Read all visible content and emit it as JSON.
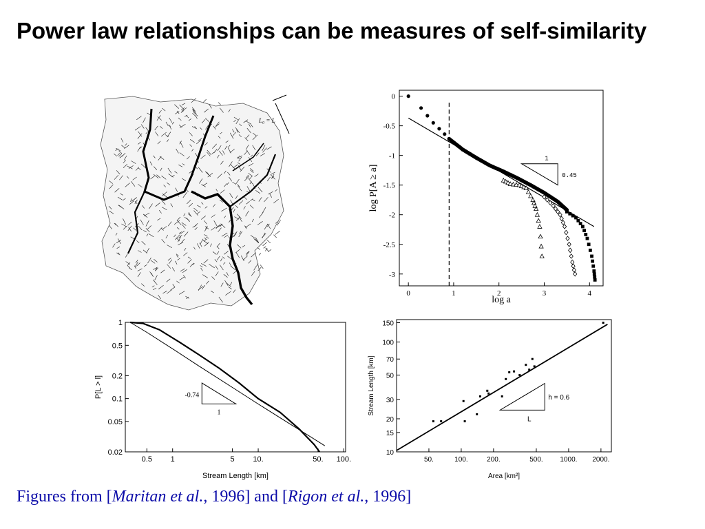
{
  "slide": {
    "title": "Power law relationships can be measures of self-similarity",
    "caption": {
      "prefix": "Figures from [",
      "ref1_author": "Maritan et al.",
      "ref1_year": ", 1996] and [",
      "ref2_author": "Rigon et al.",
      "ref2_year": ", 1996]"
    }
  },
  "colors": {
    "ink": "#000000",
    "caption": "#0b0ba8",
    "background": "#ffffff"
  },
  "river_network_label": "L₀ = L",
  "chart_data": [
    {
      "id": "area_exceedance",
      "type": "scatter",
      "xlabel": "log a",
      "ylabel": "log P[A ≥ a]",
      "xlim": [
        -0.2,
        4.3
      ],
      "ylim": [
        -3.2,
        0.1
      ],
      "x_ticks": [
        0,
        1,
        2,
        3,
        4
      ],
      "x_tick_labels": [
        "0",
        "1",
        "2",
        "3",
        "4"
      ],
      "y_ticks": [
        0,
        -0.5,
        -1,
        -1.5,
        -2,
        -2.5,
        -3
      ],
      "y_tick_labels": [
        "0",
        "-0.5",
        "-1",
        "-1.5",
        "-2",
        "-2.5",
        "-3"
      ],
      "cutoff_line_x": 0.9,
      "fit_line": {
        "x": [
          0.0,
          4.1
        ],
        "y": [
          -0.37,
          -2.2
        ]
      },
      "slope_triangle": {
        "run_label": "1",
        "rise_label": "0.45"
      },
      "series": [
        {
          "marker": "circle",
          "x": [
            0.0,
            0.28,
            0.42,
            0.55,
            0.68,
            0.8,
            0.9
          ],
          "y": [
            0.0,
            -0.2,
            -0.33,
            -0.45,
            -0.55,
            -0.64,
            -0.72
          ]
        },
        {
          "marker": "dense",
          "x": [
            0.9,
            1.2,
            1.5,
            1.8,
            2.1,
            2.4,
            2.7,
            3.0,
            3.3,
            3.5
          ],
          "y": [
            -0.72,
            -0.9,
            -1.04,
            -1.17,
            -1.27,
            -1.38,
            -1.5,
            -1.63,
            -1.78,
            -1.92
          ]
        },
        {
          "marker": "triangle",
          "x": [
            2.1,
            2.25,
            2.45,
            2.6,
            2.75,
            2.82,
            2.9,
            2.95
          ],
          "y": [
            -1.42,
            -1.48,
            -1.5,
            -1.55,
            -1.75,
            -1.9,
            -2.2,
            -2.7
          ]
        },
        {
          "marker": "diamond",
          "x": [
            3.0,
            3.2,
            3.35,
            3.45,
            3.55,
            3.62,
            3.68
          ],
          "y": [
            -1.7,
            -1.85,
            -2.0,
            -2.2,
            -2.5,
            -2.8,
            -3.0
          ]
        },
        {
          "marker": "square",
          "x": [
            3.5,
            3.7,
            3.85,
            3.95,
            4.05,
            4.1,
            4.12
          ],
          "y": [
            -1.95,
            -2.05,
            -2.2,
            -2.4,
            -2.7,
            -2.95,
            -3.1
          ]
        }
      ]
    },
    {
      "id": "stream_length_exceedance",
      "type": "line",
      "xlabel": "Stream Length [km]",
      "ylabel": "P[L > l]",
      "x_scale": "log",
      "y_scale": "log",
      "xlim": [
        0.28,
        105
      ],
      "ylim": [
        0.02,
        1
      ],
      "x_ticks": [
        0.5,
        1,
        5,
        10,
        50,
        100
      ],
      "x_tick_labels": [
        "0.5",
        "1",
        "5",
        "10.",
        "50.",
        "100."
      ],
      "y_ticks": [
        1,
        0.5,
        0.2,
        0.1,
        0.05,
        0.02
      ],
      "y_tick_labels": [
        "1",
        "0.5",
        "0.2",
        "0.1",
        "0.05",
        "0.02"
      ],
      "slope_triangle": {
        "rise_label": "-0.74",
        "run_label": "1"
      },
      "series": [
        {
          "x": [
            0.32,
            0.45,
            0.7,
            1.2,
            2,
            3.5,
            6,
            10,
            18,
            30,
            45,
            52
          ],
          "y": [
            1.0,
            0.97,
            0.8,
            0.55,
            0.38,
            0.25,
            0.16,
            0.1,
            0.066,
            0.04,
            0.025,
            0.02
          ]
        },
        {
          "x": [
            0.32,
            0.5,
            1,
            2,
            5,
            10,
            20,
            40,
            60
          ],
          "y": [
            1.0,
            0.74,
            0.45,
            0.27,
            0.14,
            0.085,
            0.052,
            0.032,
            0.024
          ]
        }
      ]
    },
    {
      "id": "length_area",
      "type": "scatter",
      "xlabel": "Area [km²]",
      "ylabel": "Stream Length [km]",
      "x_scale": "log",
      "y_scale": "log",
      "xlim": [
        25,
        2500
      ],
      "ylim": [
        10,
        160
      ],
      "x_ticks": [
        50,
        100,
        200,
        500,
        1000,
        2000
      ],
      "x_tick_labels": [
        "50.",
        "100.",
        "200.",
        "500.",
        "1000.",
        "2000."
      ],
      "y_ticks": [
        10,
        15,
        20,
        30,
        50,
        70,
        100,
        150
      ],
      "y_tick_labels": [
        "10",
        "15",
        "20",
        "30",
        "50",
        "70",
        "100",
        "150"
      ],
      "fit_line": {
        "x": [
          25,
          2300
        ],
        "y": [
          10.3,
          145
        ]
      },
      "slope_triangle": {
        "rise_label": "h = 0.6",
        "run_label": "L"
      },
      "points": {
        "x": [
          55,
          65,
          105,
          108,
          140,
          150,
          175,
          180,
          240,
          260,
          280,
          310,
          350,
          400,
          430,
          460,
          480,
          2100
        ],
        "y": [
          19,
          19,
          29,
          19,
          22,
          32,
          36,
          34,
          32,
          46,
          53,
          54,
          50,
          62,
          56,
          70,
          60,
          150
        ]
      }
    }
  ]
}
